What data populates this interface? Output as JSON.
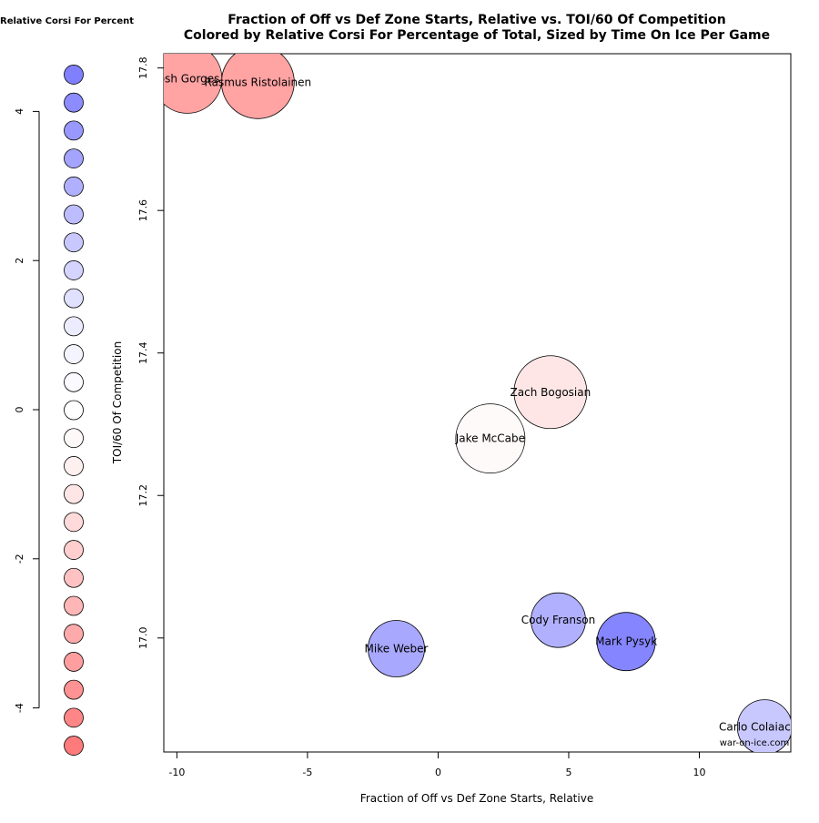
{
  "chart_data": {
    "type": "scatter",
    "title": "Fraction of Off vs Def Zone Starts, Relative vs. TOI/60 Of Competition",
    "subtitle": "Colored by Relative Corsi For Percentage of Total, Sized by Time On Ice Per Game",
    "xlabel": "Fraction of Off vs Def Zone Starts, Relative",
    "ylabel": "TOI/60 Of Competition",
    "xlim": [
      -10.5,
      13.5
    ],
    "ylim": [
      16.84,
      17.82
    ],
    "xticks": [
      -10,
      -5,
      0,
      5,
      10
    ],
    "yticks": [
      17.0,
      17.2,
      17.4,
      17.6,
      17.8
    ],
    "ytick_labels": [
      "17.0",
      "17.2",
      "17.4",
      "17.6",
      "17.8"
    ],
    "grid": false,
    "credit": "war-on-ice.com",
    "points": [
      {
        "label": "Josh Gorges",
        "x": -9.6,
        "y": 17.785,
        "color": "#ffa3a3",
        "size": 38
      },
      {
        "label": "Rasmus Ristolainen",
        "x": -6.9,
        "y": 17.78,
        "color": "#ffa3a3",
        "size": 40
      },
      {
        "label": "Zach Bogosian",
        "x": 4.3,
        "y": 17.345,
        "color": "#ffe6e6",
        "size": 40
      },
      {
        "label": "Jake McCabe",
        "x": 2.0,
        "y": 17.28,
        "color": "#fffafa",
        "size": 38
      },
      {
        "label": "Cody Franson",
        "x": 4.6,
        "y": 17.025,
        "color": "#b0b0ff",
        "size": 30
      },
      {
        "label": "Mike Weber",
        "x": -1.6,
        "y": 16.985,
        "color": "#a8a8ff",
        "size": 31
      },
      {
        "label": "Mark Pysyk",
        "x": 7.2,
        "y": 16.995,
        "color": "#8585ff",
        "size": 32
      },
      {
        "label": "Carlo Colaiacovo",
        "x": 12.5,
        "y": 16.875,
        "color": "#c8c8ff",
        "size": 30
      }
    ],
    "legend": {
      "title": "Relative Corsi For Percent",
      "range": [
        -4.5,
        4.5
      ],
      "ticks": [
        4,
        2,
        0,
        -2,
        -4
      ],
      "colors": [
        "#8080ff",
        "#8c8cff",
        "#9898ff",
        "#a4a4ff",
        "#b0b0ff",
        "#bcbcff",
        "#c8c8ff",
        "#d4d4ff",
        "#e0e0ff",
        "#ececff",
        "#f4f4ff",
        "#fafaff",
        "#ffffff",
        "#fff8f8",
        "#fff0f0",
        "#ffe6e6",
        "#ffdada",
        "#ffcece",
        "#ffc2c2",
        "#ffb6b6",
        "#ffaaaa",
        "#ff9e9e",
        "#ff9292",
        "#ff8686",
        "#ff7a7a"
      ]
    }
  }
}
